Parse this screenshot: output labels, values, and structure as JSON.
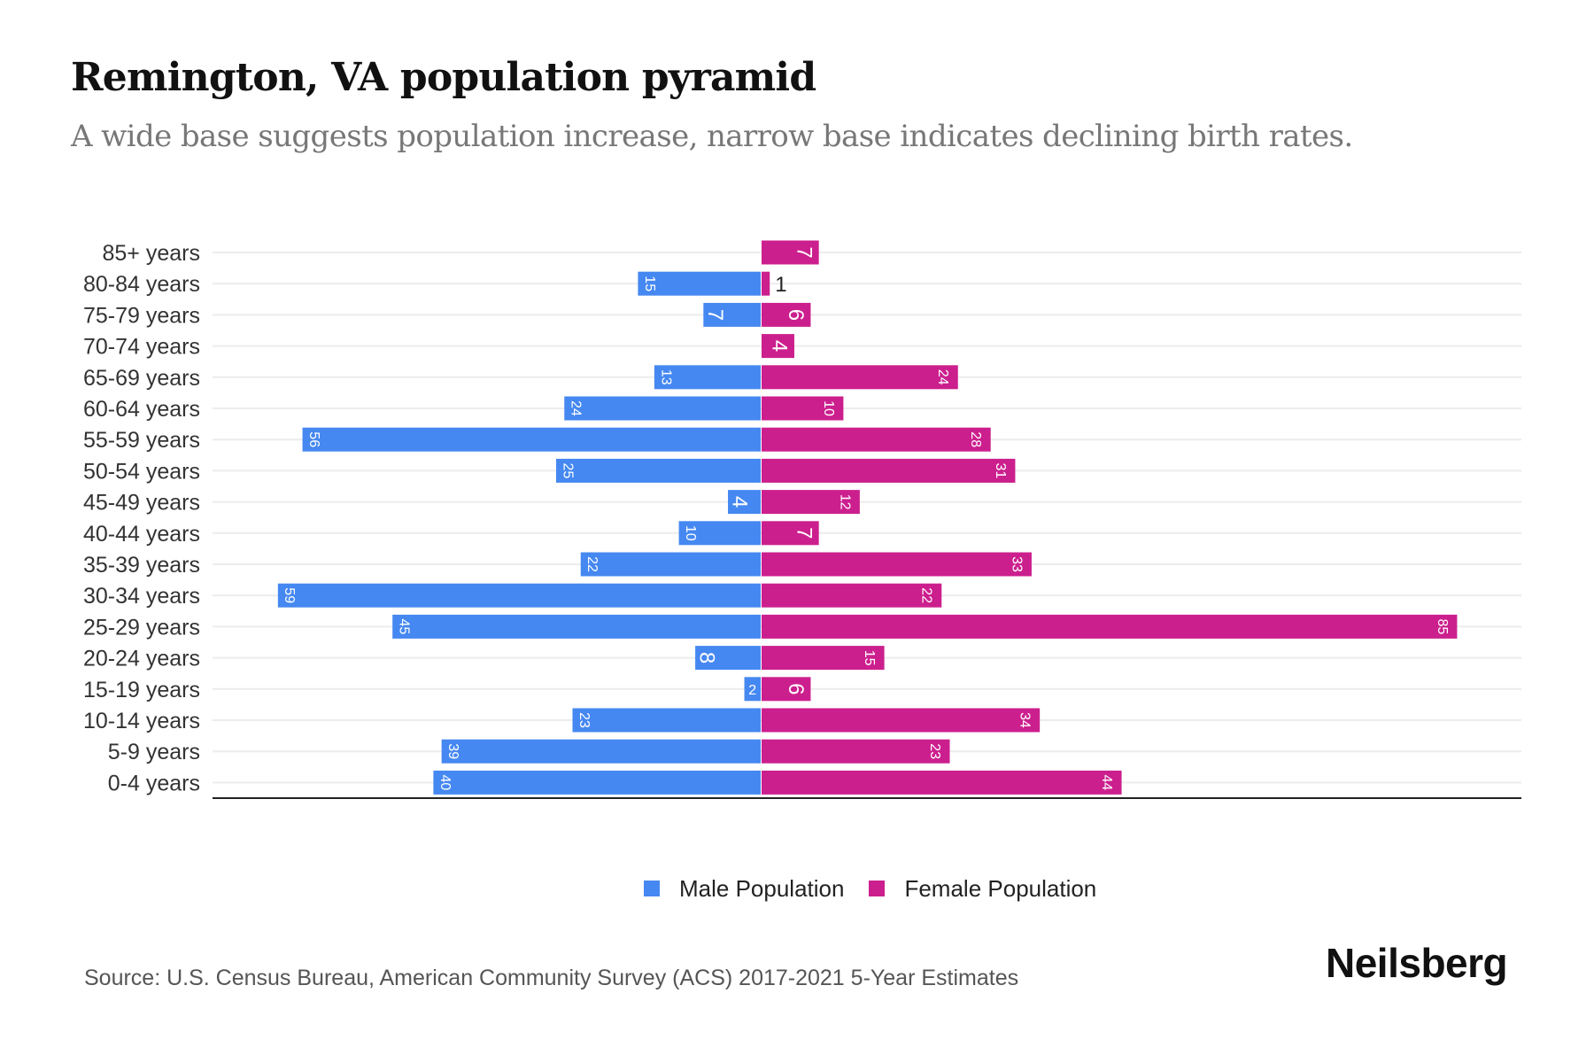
{
  "header": {
    "title": "Remington, VA population pyramid",
    "subtitle": "A wide base suggests population increase, narrow base indicates declining birth rates."
  },
  "colors": {
    "male": "#4688F1",
    "female": "#CC1F8E"
  },
  "chart_data": {
    "type": "bar",
    "orientation": "horizontal-pyramid",
    "title": "Remington, VA population pyramid",
    "subtitle": "A wide base suggests population increase, narrow base indicates declining birth rates.",
    "xlabel": "",
    "ylabel": "",
    "grid": true,
    "legend_position": "bottom-center",
    "xlim": [
      -85,
      85
    ],
    "categories": [
      "85+ years",
      "80-84 years",
      "75-79 years",
      "70-74 years",
      "65-69 years",
      "60-64 years",
      "55-59 years",
      "50-54 years",
      "45-49 years",
      "40-44 years",
      "35-39 years",
      "30-34 years",
      "25-29 years",
      "20-24 years",
      "15-19 years",
      "10-14 years",
      "5-9 years",
      "0-4 years"
    ],
    "series": [
      {
        "name": "Male Population",
        "side": "left",
        "values": [
          0,
          15,
          7,
          0,
          13,
          24,
          56,
          25,
          4,
          10,
          22,
          59,
          45,
          8,
          2,
          23,
          39,
          40
        ]
      },
      {
        "name": "Female Population",
        "side": "right",
        "values": [
          7,
          1,
          6,
          4,
          24,
          10,
          28,
          31,
          12,
          7,
          33,
          22,
          85,
          15,
          6,
          34,
          23,
          44
        ]
      }
    ],
    "data_labels": true
  },
  "legend": {
    "items": [
      {
        "label": "Male Population",
        "color": "#4688F1"
      },
      {
        "label": "Female Population",
        "color": "#CC1F8E"
      }
    ]
  },
  "footer": {
    "source": "Source: U.S. Census Bureau, American Community Survey (ACS) 2017-2021 5-Year Estimates",
    "brand": "Neilsberg"
  }
}
